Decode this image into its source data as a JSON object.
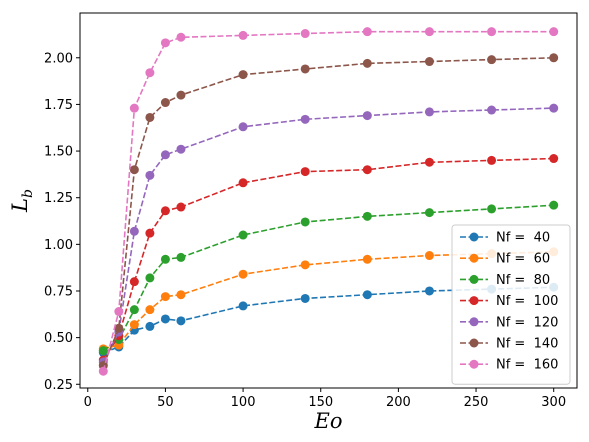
{
  "chart_data": {
    "type": "line",
    "xlabel": "Eo",
    "ylabel_main": "L",
    "ylabel_sub": "b",
    "xlim": [
      -5,
      315
    ],
    "ylim": [
      0.23,
      2.24
    ],
    "xticks": [
      0,
      50,
      100,
      150,
      200,
      250,
      300
    ],
    "yticks": [
      0.25,
      0.5,
      0.75,
      1.0,
      1.25,
      1.5,
      1.75,
      2.0
    ],
    "ytick_labels": [
      "0.25",
      "0.50",
      "0.75",
      "1.00",
      "1.25",
      "1.50",
      "1.75",
      "2.00"
    ],
    "grid": false,
    "legend_position": "lower-right",
    "line_style": "dashed",
    "marker": "circle",
    "x": [
      10,
      20,
      30,
      40,
      50,
      60,
      100,
      140,
      180,
      220,
      260,
      300
    ],
    "series": [
      {
        "name": "Nf =  40",
        "color": "#1f77b4",
        "values": [
          0.42,
          0.45,
          0.54,
          0.56,
          0.6,
          0.59,
          0.67,
          0.71,
          0.73,
          0.75,
          0.76,
          0.77
        ]
      },
      {
        "name": "Nf =  60",
        "color": "#ff7f0e",
        "values": [
          0.44,
          0.46,
          0.57,
          0.65,
          0.72,
          0.73,
          0.84,
          0.89,
          0.92,
          0.94,
          0.95,
          0.96
        ]
      },
      {
        "name": "Nf =  80",
        "color": "#2ca02c",
        "values": [
          0.43,
          0.49,
          0.65,
          0.82,
          0.92,
          0.93,
          1.05,
          1.12,
          1.15,
          1.17,
          1.19,
          1.21
        ]
      },
      {
        "name": "Nf =  100",
        "color": "#d62728",
        "values": [
          0.38,
          0.51,
          0.8,
          1.06,
          1.18,
          1.2,
          1.33,
          1.39,
          1.4,
          1.44,
          1.45,
          1.46
        ]
      },
      {
        "name": "Nf =  120",
        "color": "#9467bd",
        "values": [
          0.37,
          0.53,
          1.07,
          1.37,
          1.48,
          1.51,
          1.63,
          1.67,
          1.69,
          1.71,
          1.72,
          1.73
        ]
      },
      {
        "name": "Nf =  140",
        "color": "#8c564b",
        "values": [
          0.35,
          0.55,
          1.4,
          1.68,
          1.76,
          1.8,
          1.91,
          1.94,
          1.97,
          1.98,
          1.99,
          2.0
        ]
      },
      {
        "name": "Nf =  160",
        "color": "#e377c2",
        "values": [
          0.32,
          0.64,
          1.73,
          1.92,
          2.08,
          2.11,
          2.12,
          2.13,
          2.14,
          2.14,
          2.14,
          2.14
        ]
      }
    ]
  }
}
